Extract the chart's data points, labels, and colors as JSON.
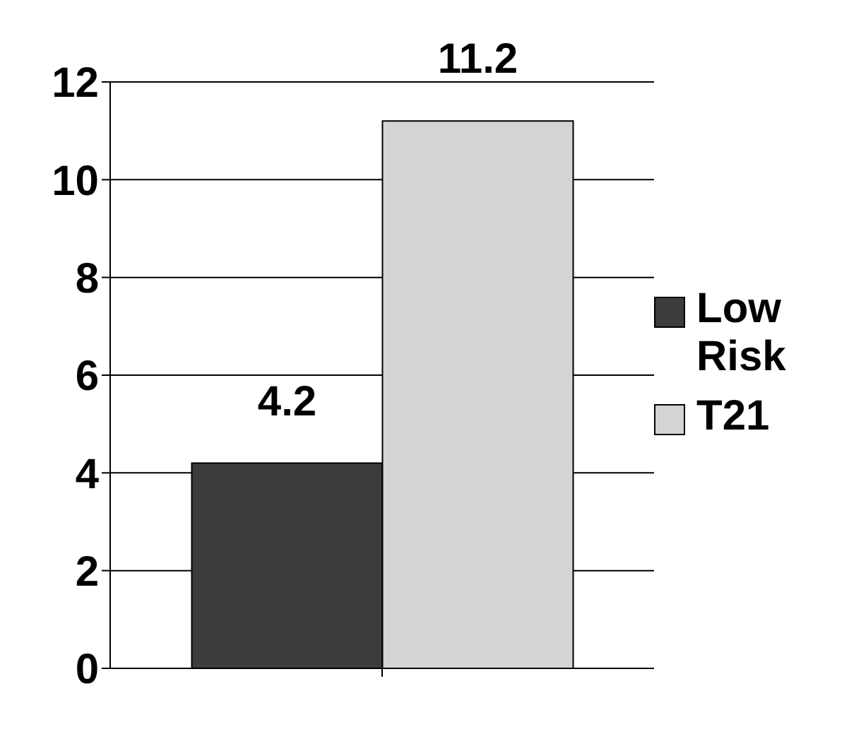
{
  "chart_data": {
    "type": "bar",
    "categories": [
      null
    ],
    "series": [
      {
        "name": "Low Risk",
        "color": "#3c3c3c",
        "values": [
          4.2
        ]
      },
      {
        "name": "T21",
        "color": "#d4d4d4",
        "values": [
          11.2
        ]
      }
    ],
    "ylim": [
      0,
      12
    ],
    "yticks": [
      0,
      2,
      4,
      6,
      8,
      10,
      12
    ],
    "grid": "y",
    "legend": "right",
    "data_labels": true
  }
}
